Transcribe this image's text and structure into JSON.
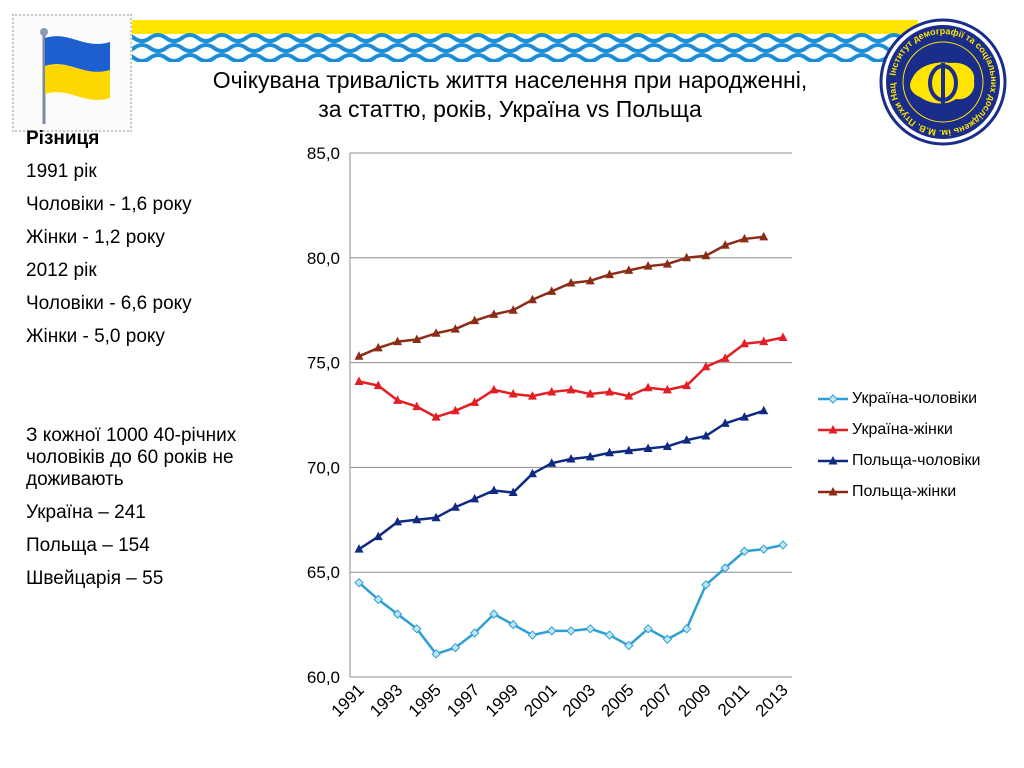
{
  "title_line1": "Очікувана тривалість життя населення при народженні,",
  "title_line2": "за статтю, років, Україна vs Польща",
  "logo_text": "Інститут демографії та соціальних досліджень ім. М.В. Птухи Національна академія наук України",
  "left_panel": {
    "header": "Різниця",
    "lines_1991": [
      "1991 рік",
      "Чоловіки - 1,6 року",
      "Жінки - 1,2 року"
    ],
    "lines_2012": [
      "2012 рік",
      "Чоловіки - 6,6 року",
      "Жінки - 5,0 року"
    ],
    "note": "З кожної 1000 40-річних чоловіків до 60 років не доживають",
    "countries": [
      "Україна – 241",
      "Польща – 154",
      "Швейцарія – 55"
    ]
  },
  "colors": {
    "ukraine_men": "#2e9fd3",
    "ukraine_women": "#e31e24",
    "poland_men": "#102a83",
    "poland_women": "#8b2c16",
    "wave": "#1a8fd6",
    "banner_yellow": "#ffe500",
    "grid": "#8c8c8c"
  },
  "chart_data": {
    "type": "line",
    "ylim": [
      60,
      85
    ],
    "yticks": [
      "60,0",
      "65,0",
      "70,0",
      "75,0",
      "80,0",
      "85,0"
    ],
    "xtick_labels": [
      "1991",
      "1993",
      "1995",
      "1997",
      "1999",
      "2001",
      "2003",
      "2005",
      "2007",
      "2009",
      "2011",
      "2013"
    ],
    "x": [
      1991,
      1992,
      1993,
      1994,
      1995,
      1996,
      1997,
      1998,
      1999,
      2000,
      2001,
      2002,
      2003,
      2004,
      2005,
      2006,
      2007,
      2008,
      2009,
      2010,
      2011,
      2012,
      2013
    ],
    "grid": true,
    "legend_position": "right",
    "series": [
      {
        "name": "Україна-чоловіки",
        "marker": "diamond",
        "color_key": "ukraine_men",
        "values": [
          64.5,
          63.7,
          63.0,
          62.3,
          61.1,
          61.4,
          62.1,
          63.0,
          62.5,
          62.0,
          62.2,
          62.2,
          62.3,
          62.0,
          61.5,
          62.3,
          61.8,
          62.3,
          64.4,
          65.2,
          66.0,
          66.1,
          66.3
        ]
      },
      {
        "name": "Україна-жінки",
        "marker": "triangle",
        "color_key": "ukraine_women",
        "values": [
          74.1,
          73.9,
          73.2,
          72.9,
          72.4,
          72.7,
          73.1,
          73.7,
          73.5,
          73.4,
          73.6,
          73.7,
          73.5,
          73.6,
          73.4,
          73.8,
          73.7,
          73.9,
          74.8,
          75.2,
          75.9,
          76.0,
          76.2
        ]
      },
      {
        "name": "Польща-чоловіки",
        "marker": "triangle",
        "color_key": "poland_men",
        "values": [
          66.1,
          66.7,
          67.4,
          67.5,
          67.6,
          68.1,
          68.5,
          68.9,
          68.8,
          69.7,
          70.2,
          70.4,
          70.5,
          70.7,
          70.8,
          70.9,
          71.0,
          71.3,
          71.5,
          72.1,
          72.4,
          72.7,
          null
        ]
      },
      {
        "name": "Польща-жінки",
        "marker": "triangle",
        "color_key": "poland_women",
        "values": [
          75.3,
          75.7,
          76.0,
          76.1,
          76.4,
          76.6,
          77.0,
          77.3,
          77.5,
          78.0,
          78.4,
          78.8,
          78.9,
          79.2,
          79.4,
          79.6,
          79.7,
          80.0,
          80.1,
          80.6,
          80.9,
          81.0,
          null
        ]
      }
    ]
  }
}
